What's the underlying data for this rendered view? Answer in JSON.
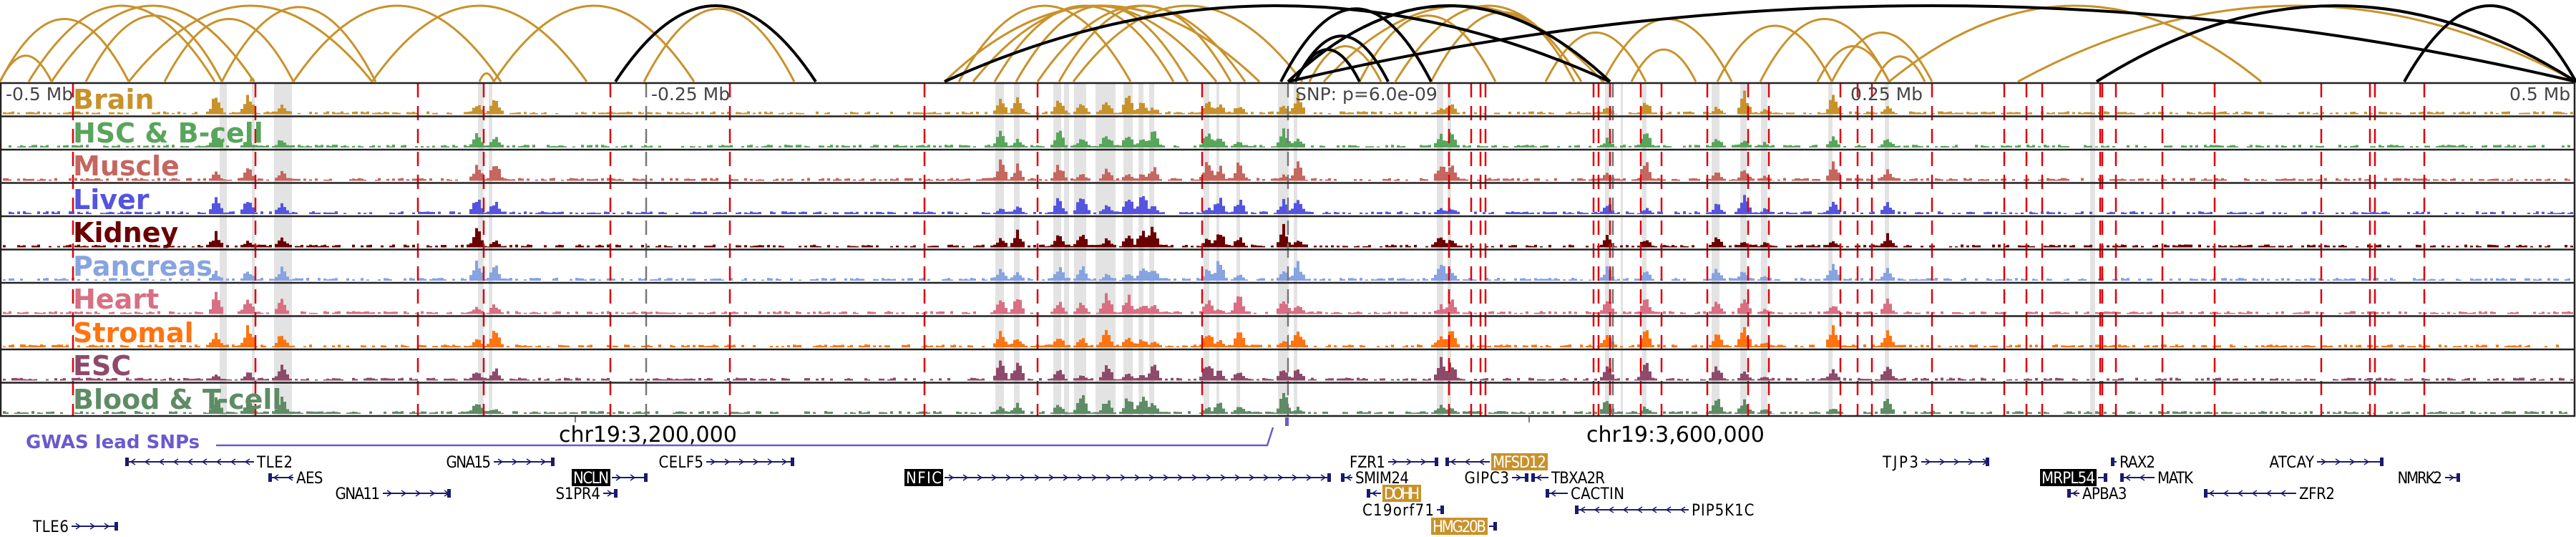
{
  "colors": {
    "arc_tissue": "#c8922b",
    "arc_snp": "#000000",
    "frame": "#222222",
    "snp_marker": "#e0000a",
    "highlight_band": "#e3e3e3",
    "gwas": "#6a5acd",
    "gene": "#1a1a6e",
    "gene_highlight_black": "#000000",
    "gene_highlight_gold": "#c8922b"
  },
  "axis": {
    "labels": [
      {
        "text": "-0.5 Mb",
        "pos": -0.5
      },
      {
        "text": "-0.25 Mb",
        "pos": -0.25
      },
      {
        "text": "0.25 Mb",
        "pos": 0.25
      },
      {
        "text": "0.5 Mb",
        "pos": 0.5
      }
    ],
    "snp_label": "SNP: p=6.0e-09"
  },
  "tracks": [
    {
      "name": "Brain",
      "color": "#c8922b"
    },
    {
      "name": "HSC & B-cell",
      "color": "#58a55c"
    },
    {
      "name": "Muscle",
      "color": "#c5665f"
    },
    {
      "name": "Liver",
      "color": "#5454e0"
    },
    {
      "name": "Kidney",
      "color": "#6b0000"
    },
    {
      "name": "Pancreas",
      "color": "#87a3e0"
    },
    {
      "name": "Heart",
      "color": "#d96f82"
    },
    {
      "name": "Stromal",
      "color": "#ff7410"
    },
    {
      "name": "ESC",
      "color": "#8e4a6a"
    },
    {
      "name": "Blood & T-cell",
      "color": "#5e8c64"
    }
  ],
  "coordinates": [
    {
      "text": "chr19:3,200,000"
    },
    {
      "text": "chr19:3,600,000"
    }
  ],
  "gwas": {
    "title": "GWAS lead SNPs"
  },
  "genes": [
    {
      "name": "TLE2",
      "strand": "-",
      "row": 0,
      "highlight": "none"
    },
    {
      "name": "AES",
      "strand": "-",
      "row": 1,
      "highlight": "none"
    },
    {
      "name": "GNA11",
      "strand": "+",
      "row": 2,
      "highlight": "none"
    },
    {
      "name": "TLE6",
      "strand": "+",
      "row": 4,
      "highlight": "none"
    },
    {
      "name": "GNA15",
      "strand": "+",
      "row": 0,
      "highlight": "none"
    },
    {
      "name": "NCLN",
      "strand": "+",
      "row": 1,
      "highlight": "black"
    },
    {
      "name": "S1PR4",
      "strand": "+",
      "row": 2,
      "highlight": "none"
    },
    {
      "name": "CELF5",
      "strand": "+",
      "row": 0,
      "highlight": "none"
    },
    {
      "name": "NFIC",
      "strand": "+",
      "row": 1,
      "highlight": "black"
    },
    {
      "name": "FZR1",
      "strand": "+",
      "row": 0,
      "highlight": "none"
    },
    {
      "name": "SMIM24",
      "strand": "-",
      "row": 1,
      "highlight": "none"
    },
    {
      "name": "DOHH",
      "strand": "-",
      "row": 2,
      "highlight": "gold"
    },
    {
      "name": "C19orf71",
      "strand": "+",
      "row": 3,
      "highlight": "none"
    },
    {
      "name": "HMG20B",
      "strand": "+",
      "row": 4,
      "highlight": "gold"
    },
    {
      "name": "MFSD12",
      "strand": "-",
      "row": 0,
      "highlight": "gold"
    },
    {
      "name": "GIPC3",
      "strand": "+",
      "row": 1,
      "highlight": "none"
    },
    {
      "name": "TBXA2R",
      "strand": "-",
      "row": 1,
      "highlight": "none"
    },
    {
      "name": "CACTIN",
      "strand": "-",
      "row": 2,
      "highlight": "none"
    },
    {
      "name": "PIP5K1C",
      "strand": "-",
      "row": 3,
      "highlight": "none"
    },
    {
      "name": "TJP3",
      "strand": "+",
      "row": 0,
      "highlight": "none"
    },
    {
      "name": "MRPL54",
      "strand": "+",
      "row": 1,
      "highlight": "black"
    },
    {
      "name": "APBA3",
      "strand": "-",
      "row": 2,
      "highlight": "none"
    },
    {
      "name": "RAX2",
      "strand": "-",
      "row": 0,
      "highlight": "none"
    },
    {
      "name": "MATK",
      "strand": "-",
      "row": 1,
      "highlight": "none"
    },
    {
      "name": "ZFR2",
      "strand": "-",
      "row": 2,
      "highlight": "none"
    },
    {
      "name": "ATCAY",
      "strand": "+",
      "row": 0,
      "highlight": "none"
    },
    {
      "name": "NMRK2",
      "strand": "+",
      "row": 1,
      "highlight": "none"
    }
  ]
}
